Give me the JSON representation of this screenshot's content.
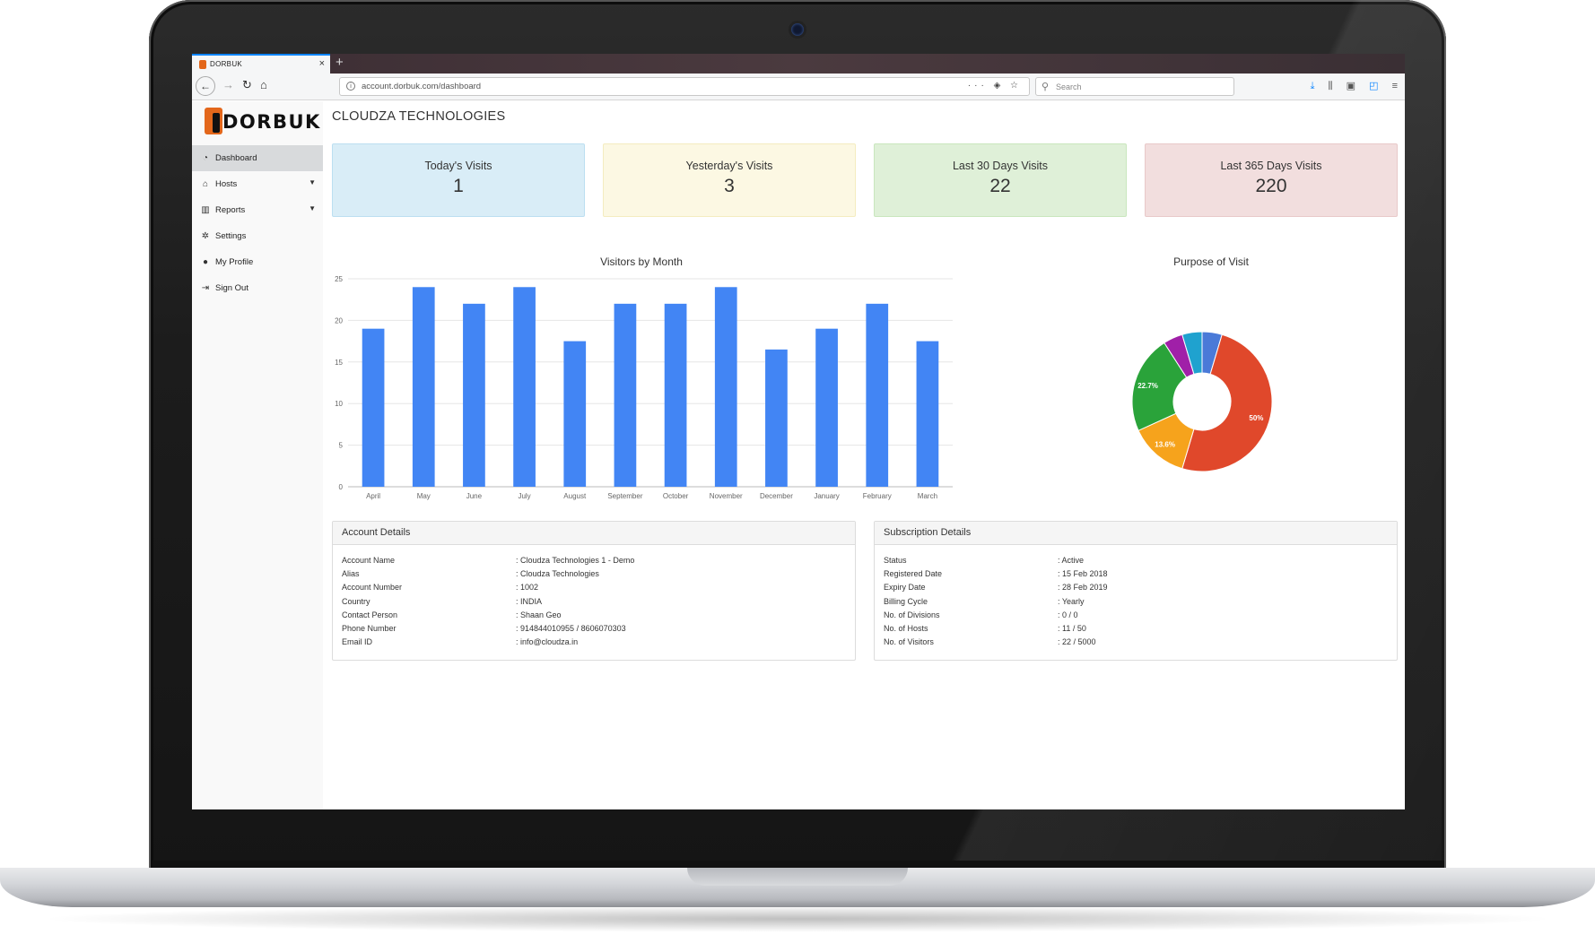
{
  "browser": {
    "tab_title": "DORBUK",
    "tab_close": "×",
    "new_tab": "+",
    "url": "account.dorbuk.com/dashboard",
    "search_placeholder": "Search"
  },
  "sidebar": {
    "logo_text": "DORBUK",
    "items": [
      {
        "label": "Dashboard",
        "icon": "dashboard-icon",
        "glyph": "◔",
        "active": true,
        "caret": false
      },
      {
        "label": "Hosts",
        "icon": "home-icon",
        "glyph": "⌂",
        "active": false,
        "caret": true
      },
      {
        "label": "Reports",
        "icon": "bar-chart-icon",
        "glyph": "▥",
        "active": false,
        "caret": true
      },
      {
        "label": "Settings",
        "icon": "gear-icon",
        "glyph": "✲",
        "active": false,
        "caret": false
      },
      {
        "label": "My Profile",
        "icon": "user-icon",
        "glyph": "●",
        "active": false,
        "caret": false
      },
      {
        "label": "Sign Out",
        "icon": "sign-out-icon",
        "glyph": "⇥",
        "active": false,
        "caret": false
      }
    ]
  },
  "page_title": "CLOUDZA TECHNOLOGIES",
  "stats": [
    {
      "label": "Today's Visits",
      "value": "1"
    },
    {
      "label": "Yesterday's Visits",
      "value": "3"
    },
    {
      "label": "Last 30 Days Visits",
      "value": "22"
    },
    {
      "label": "Last 365 Days Visits",
      "value": "220"
    }
  ],
  "chart_data": [
    {
      "type": "bar",
      "title": "Visitors by Month",
      "categories": [
        "April",
        "May",
        "June",
        "July",
        "August",
        "September",
        "October",
        "November",
        "December",
        "January",
        "February",
        "March"
      ],
      "values": [
        19,
        24,
        22,
        24,
        17.5,
        22,
        22,
        24,
        16.5,
        19,
        22,
        17.5
      ],
      "ylim": [
        0,
        25
      ],
      "yticks": [
        0,
        5,
        10,
        15,
        20,
        25
      ],
      "grid": true,
      "color": "#4285f4"
    },
    {
      "type": "pie",
      "title": "Purpose of Visit",
      "donut": true,
      "slices": [
        {
          "value": 50,
          "label": "50%",
          "color": "#e0482b"
        },
        {
          "value": 13.6,
          "label": "13.6%",
          "color": "#f6a31c"
        },
        {
          "value": 22.7,
          "label": "22.7%",
          "color": "#2aa33a"
        },
        {
          "value": 4.5,
          "label": "",
          "color": "#a020a8"
        },
        {
          "value": 4.6,
          "label": "",
          "color": "#1fa2cf"
        },
        {
          "value": 4.6,
          "label": "",
          "color": "#4a7ad8"
        }
      ]
    }
  ],
  "account_details": {
    "title": "Account Details",
    "rows": [
      {
        "key": "Account Name",
        "value": ": Cloudza Technologies 1 - Demo"
      },
      {
        "key": "Alias",
        "value": ": Cloudza Technologies"
      },
      {
        "key": "Account Number",
        "value": ": 1002"
      },
      {
        "key": "Country",
        "value": ": INDIA"
      },
      {
        "key": "Contact Person",
        "value": ": Shaan Geo"
      },
      {
        "key": "Phone Number",
        "value": ": 914844010955 / 8606070303"
      },
      {
        "key": "Email ID",
        "value": ": info@cloudza.in"
      }
    ]
  },
  "subscription_details": {
    "title": "Subscription Details",
    "rows": [
      {
        "key": "Status",
        "value": ": Active"
      },
      {
        "key": "Registered Date",
        "value": ": 15 Feb 2018"
      },
      {
        "key": "Expiry Date",
        "value": ": 28 Feb 2019"
      },
      {
        "key": "Billing Cycle",
        "value": ": Yearly"
      },
      {
        "key": "No. of Divisions",
        "value": ": 0 / 0"
      },
      {
        "key": "No. of Hosts",
        "value": ": 11 / 50"
      },
      {
        "key": "No. of Visitors",
        "value": ": 22 / 5000"
      }
    ]
  }
}
